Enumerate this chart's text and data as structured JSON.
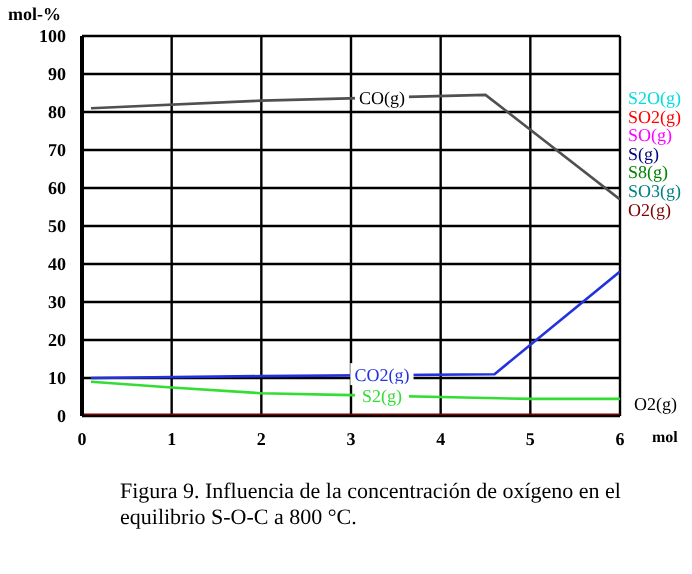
{
  "chart_data": {
    "type": "line",
    "xlabel": "mol",
    "ylabel": "mol-%",
    "annotations": [
      "O2(g)",
      "Figura 9.  Influencia de la concentración de oxígeno en el equilibrio S-O-C a 800 °C."
    ],
    "xlim": [
      0,
      6
    ],
    "xticks": [
      0,
      1,
      2,
      3,
      4,
      5,
      6
    ],
    "ylim": [
      0,
      100
    ],
    "yticks": [
      0,
      10,
      20,
      30,
      40,
      50,
      60,
      70,
      80,
      90,
      100
    ],
    "grid": true,
    "legend": "right",
    "marker": "none",
    "line_style": "solid",
    "series": [
      {
        "name": "CO(g)",
        "color": "#505050",
        "x": [
          0.1,
          2,
          4.5,
          6
        ],
        "values": [
          81,
          83,
          84.5,
          57
        ]
      },
      {
        "name": "CO2(g)",
        "color": "#2233dd",
        "x": [
          0.1,
          2,
          4.6,
          6
        ],
        "values": [
          10,
          10.5,
          11,
          38
        ]
      },
      {
        "name": "S2(g)",
        "color": "#33dd33",
        "x": [
          0.1,
          1,
          2,
          3,
          4,
          5,
          6
        ],
        "values": [
          9,
          7.5,
          6,
          5.5,
          5,
          4.5,
          4.5
        ]
      },
      {
        "name": "S2O(g)",
        "color": "#00dddd",
        "values": [
          null
        ]
      },
      {
        "name": "SO2(g)",
        "color": "#ff0000",
        "values": [
          null
        ]
      },
      {
        "name": "SO(g)",
        "color": "#ff00ff",
        "values": [
          null
        ]
      },
      {
        "name": "S(g)",
        "color": "#000080",
        "values": [
          null
        ]
      },
      {
        "name": "S8(g)",
        "color": "#008000",
        "values": [
          null
        ]
      },
      {
        "name": "SO3(g)",
        "color": "#008080",
        "values": [
          null
        ]
      },
      {
        "name": "O2(g)",
        "color": "#800000",
        "x": [
          0,
          6
        ],
        "values": [
          0,
          0
        ]
      }
    ]
  }
}
